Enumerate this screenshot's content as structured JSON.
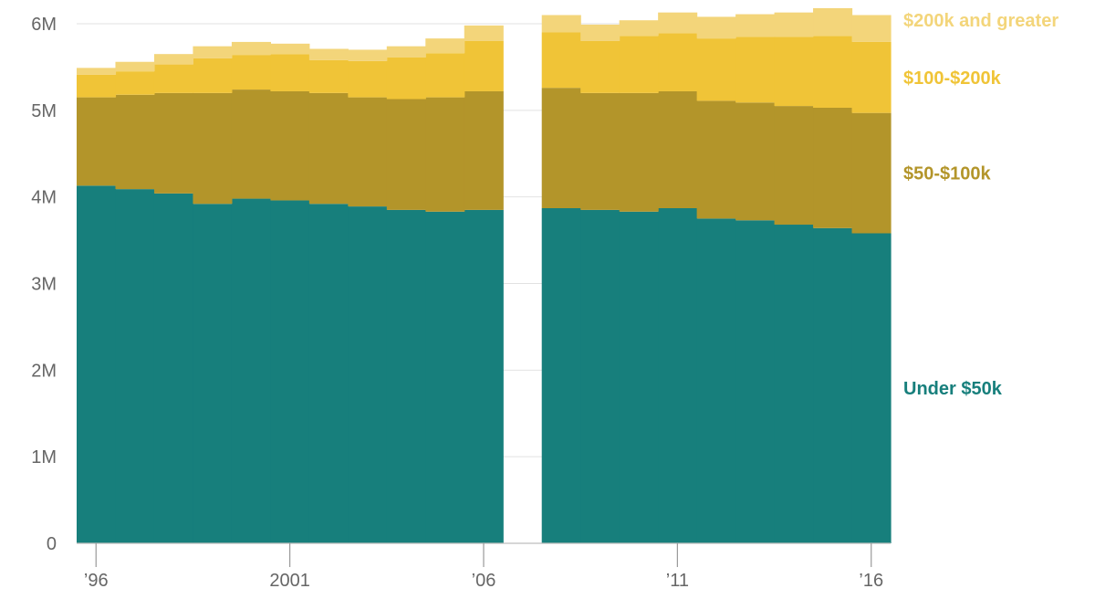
{
  "chart_data": {
    "type": "area",
    "stacked": true,
    "step": true,
    "x": [
      1996,
      1997,
      1998,
      1999,
      2000,
      2001,
      2002,
      2003,
      2004,
      2005,
      2006,
      2007,
      2008,
      2009,
      2010,
      2011,
      2012,
      2013,
      2014,
      2015,
      2016
    ],
    "gap_years": [
      2007
    ],
    "xlim": [
      1995.5,
      2016.5
    ],
    "ylim": [
      0,
      6000000
    ],
    "y_ticks": [
      {
        "value": 0,
        "label": "0"
      },
      {
        "value": 1000000,
        "label": "1M"
      },
      {
        "value": 2000000,
        "label": "2M"
      },
      {
        "value": 3000000,
        "label": "3M"
      },
      {
        "value": 4000000,
        "label": "4M"
      },
      {
        "value": 5000000,
        "label": "5M"
      },
      {
        "value": 6000000,
        "label": "6M"
      }
    ],
    "x_ticks": [
      {
        "value": 1996,
        "label": "’96"
      },
      {
        "value": 2001,
        "label": "2001"
      },
      {
        "value": 2006,
        "label": "’06"
      },
      {
        "value": 2011,
        "label": "’11"
      },
      {
        "value": 2016,
        "label": "’16"
      }
    ],
    "grid": "horizontal",
    "legend_placement": "right, inline labels",
    "series": [
      {
        "name": "Under $50k",
        "color": "#177f7c",
        "values": [
          4130000,
          4090000,
          4040000,
          3920000,
          3980000,
          3960000,
          3920000,
          3890000,
          3850000,
          3830000,
          3850000,
          null,
          3870000,
          3850000,
          3830000,
          3870000,
          3750000,
          3730000,
          3680000,
          3640000,
          3580000
        ]
      },
      {
        "name": "$50-$100k",
        "color": "#b3952a",
        "values": [
          1020000,
          1090000,
          1160000,
          1280000,
          1260000,
          1260000,
          1280000,
          1260000,
          1280000,
          1320000,
          1370000,
          null,
          1390000,
          1350000,
          1370000,
          1350000,
          1360000,
          1360000,
          1370000,
          1390000,
          1390000
        ]
      },
      {
        "name": "$100-$200k",
        "color": "#f0c437",
        "values": [
          260000,
          270000,
          330000,
          400000,
          400000,
          430000,
          380000,
          420000,
          480000,
          510000,
          580000,
          null,
          640000,
          600000,
          660000,
          670000,
          720000,
          760000,
          800000,
          830000,
          820000
        ]
      },
      {
        "name": "$200k and greater",
        "color": "#f3d57a",
        "values": [
          80000,
          110000,
          120000,
          140000,
          150000,
          120000,
          130000,
          130000,
          130000,
          170000,
          180000,
          null,
          200000,
          190000,
          180000,
          240000,
          250000,
          260000,
          280000,
          320000,
          310000
        ]
      }
    ]
  }
}
